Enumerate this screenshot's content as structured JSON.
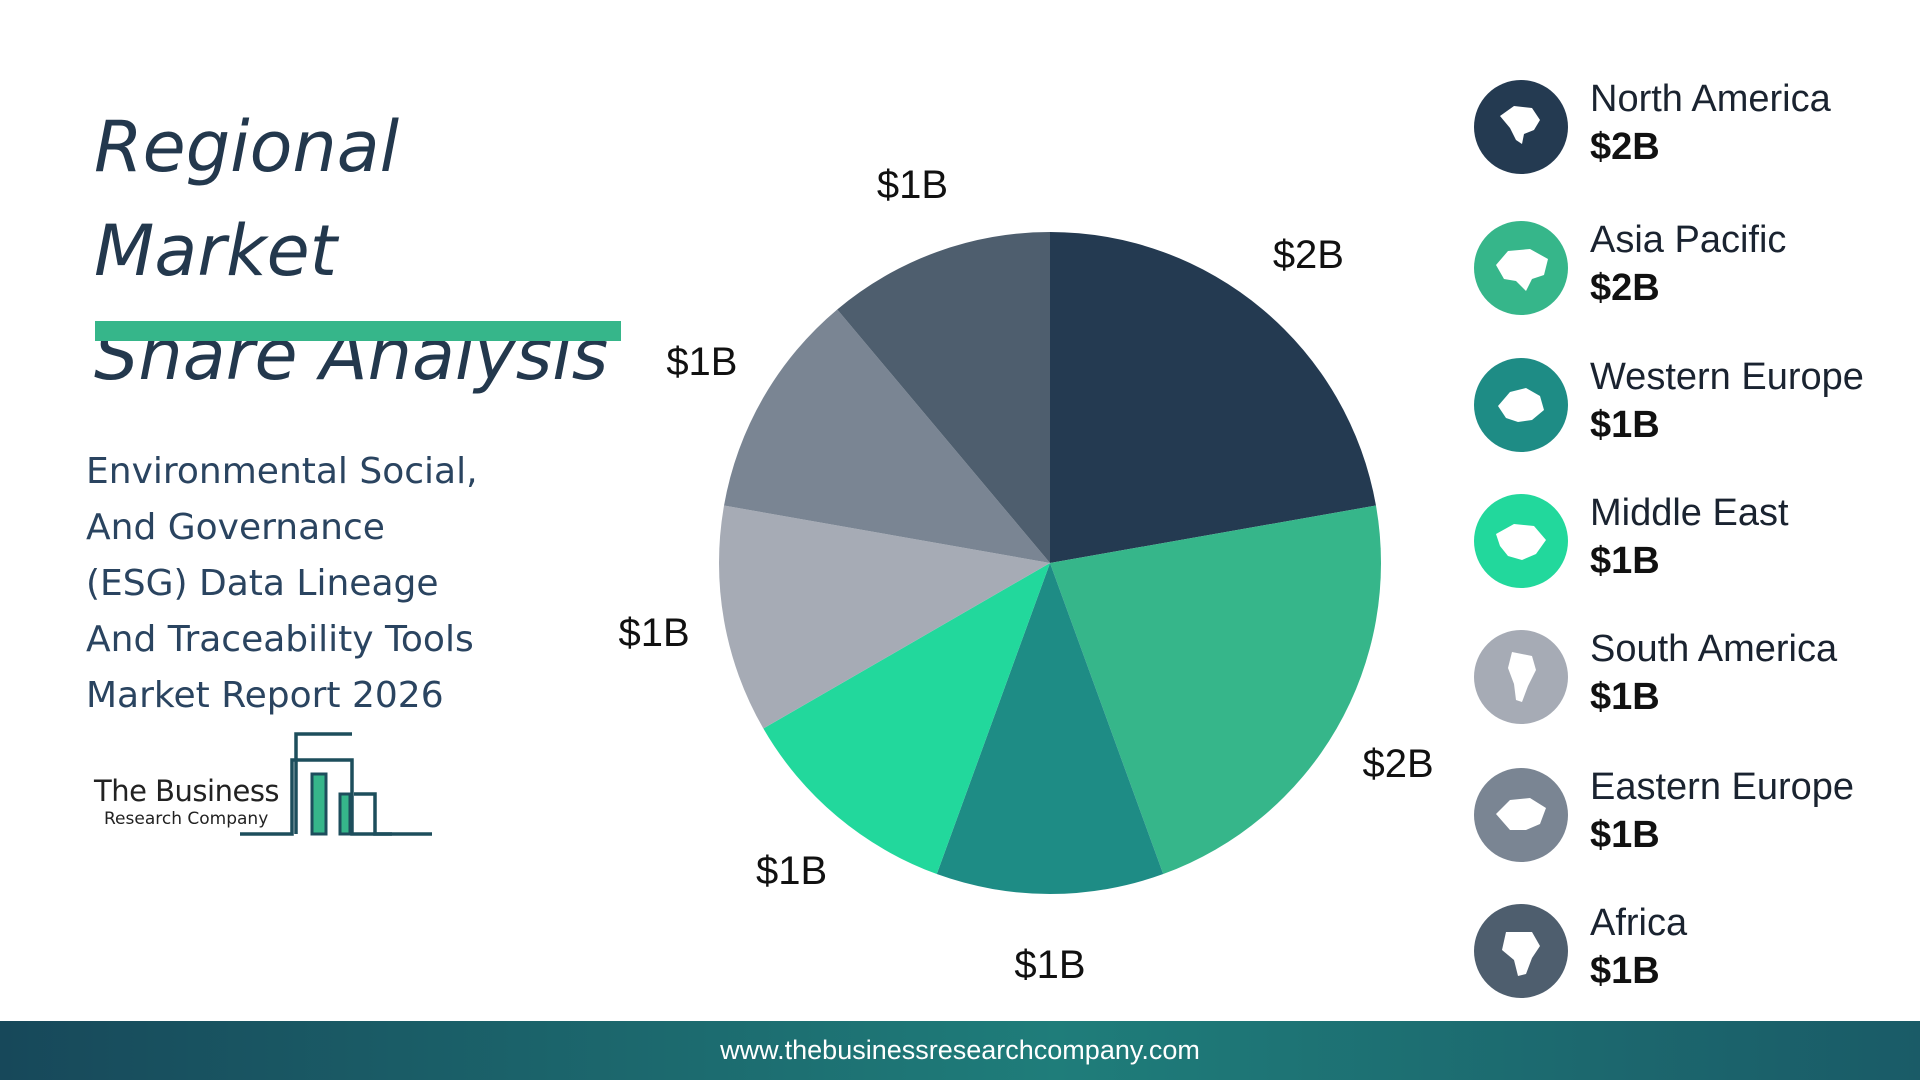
{
  "header": {
    "title_line1": "Regional Market",
    "title_line2": "Share Analysis"
  },
  "report": {
    "lines": [
      "Environmental Social,",
      "And Governance",
      "(ESG) Data Lineage",
      "And Traceability Tools",
      "Market Report 2026"
    ]
  },
  "logo": {
    "line1": "The Business",
    "line2": "Research Company"
  },
  "chart_data": {
    "type": "pie",
    "categories": [
      "North America",
      "Asia Pacific",
      "Western Europe",
      "Middle East",
      "South America",
      "Eastern Europe",
      "Africa"
    ],
    "values": [
      2,
      2,
      1,
      1,
      1,
      1,
      1
    ],
    "data_labels": [
      "$2B",
      "$2B",
      "$1B",
      "$1B",
      "$1B",
      "$1B",
      "$1B"
    ],
    "unit": "$B",
    "colors": [
      "#243a51",
      "#36b68a",
      "#1e8c85",
      "#22d89c",
      "#a6abb5",
      "#7a8593",
      "#4e5e6e"
    ],
    "start": "12 o'clock, clockwise",
    "legend_placement": "right"
  },
  "legend": {
    "items": [
      {
        "name": "North America",
        "value": "$2B",
        "icon": "north-america-globe-icon",
        "color": "#243a51"
      },
      {
        "name": "Asia Pacific",
        "value": "$2B",
        "icon": "asia-pacific-globe-icon",
        "color": "#36b68a"
      },
      {
        "name": "Western Europe",
        "value": "$1B",
        "icon": "western-europe-globe-icon",
        "color": "#1e8c85"
      },
      {
        "name": "Middle East",
        "value": "$1B",
        "icon": "middle-east-globe-icon",
        "color": "#22d89c"
      },
      {
        "name": "South America",
        "value": "$1B",
        "icon": "south-america-globe-icon",
        "color": "#a6abb5"
      },
      {
        "name": "Eastern Europe",
        "value": "$1B",
        "icon": "eastern-europe-globe-icon",
        "color": "#7a8593"
      },
      {
        "name": "Africa",
        "value": "$1B",
        "icon": "africa-globe-icon",
        "color": "#4e5e6e"
      }
    ]
  },
  "footer": {
    "url": "www.thebusinessresearchcompany.com"
  }
}
